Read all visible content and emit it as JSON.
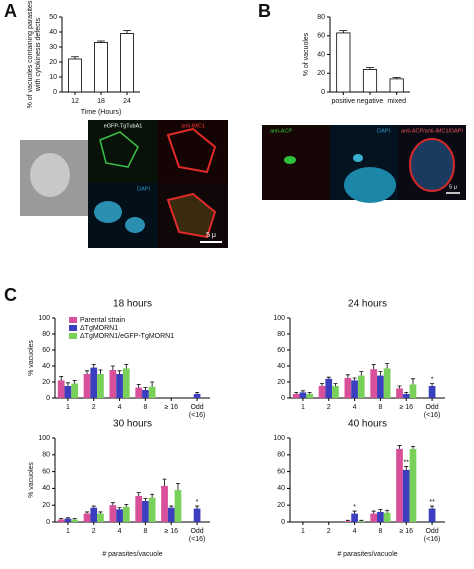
{
  "figure": {
    "panel_labels": [
      "A",
      "B",
      "C"
    ],
    "image_labels_a": [
      "eGFP-TgTubA1",
      "anti-IMC1",
      "DAPI",
      "5 μ"
    ],
    "image_labels_b": [
      "anti-ACP",
      "DAPI",
      "anti-ACP/anti-IMC1/DAPI",
      "5 μ"
    ]
  },
  "chart_data": [
    {
      "type": "bar",
      "ylabel": [
        "% of vacuoles containing parasites",
        "with cytokinesis defects"
      ],
      "xlabel": "Time (Hours)",
      "categories": [
        "12",
        "18",
        "24"
      ],
      "values": [
        22,
        33,
        39
      ],
      "errors": [
        1.5,
        1,
        2
      ],
      "color": "#ffffff",
      "ylim": [
        0,
        50
      ],
      "yticks": [
        0,
        10,
        20,
        30,
        40,
        50
      ]
    },
    {
      "type": "bar",
      "ylabel": [
        "% of vacuoles"
      ],
      "categories": [
        "positive",
        "negative",
        "mixed"
      ],
      "values": [
        63,
        24,
        14
      ],
      "errors": [
        2.5,
        2,
        1.5
      ],
      "color": "#ffffff",
      "ylim": [
        0,
        80
      ],
      "yticks": [
        0,
        20,
        40,
        60,
        80
      ]
    },
    {
      "type": "grouped-bar",
      "title": "18 hours",
      "ylabel": [
        "% vacuoles"
      ],
      "categories": [
        "1",
        "2",
        "4",
        "8",
        "≥ 16",
        [
          "Odd",
          "(<16)"
        ]
      ],
      "series": [
        {
          "name": "Parental strain",
          "color": "#d9509a",
          "values": [
            22,
            30,
            35,
            13,
            0,
            0
          ],
          "errors": [
            5,
            4,
            5,
            4,
            0,
            0
          ]
        },
        {
          "name": "ΔTgMORN1",
          "color": "#3b3fbf",
          "values": [
            15,
            38,
            30,
            10,
            0,
            5
          ],
          "errors": [
            4,
            4,
            4,
            3,
            0,
            2
          ]
        },
        {
          "name": "ΔTgMORN1/eGFP-TgMORN1",
          "color": "#7ad15a",
          "values": [
            18,
            30,
            37,
            14,
            0,
            0
          ],
          "errors": [
            4,
            5,
            5,
            6,
            0,
            0
          ]
        }
      ],
      "ylim": [
        0,
        100
      ],
      "yticks": [
        0,
        20,
        40,
        60,
        80,
        100
      ]
    },
    {
      "type": "grouped-bar",
      "title": "24 hours",
      "categories": [
        "1",
        "2",
        "4",
        "8",
        "≥ 16",
        [
          "Odd",
          "(<16)"
        ]
      ],
      "series": [
        {
          "color": "#d9509a",
          "values": [
            5,
            15,
            25,
            36,
            12,
            0
          ],
          "errors": [
            2,
            3,
            4,
            6,
            3,
            0
          ]
        },
        {
          "color": "#3b3fbf",
          "values": [
            7,
            24,
            22,
            28,
            5,
            15
          ],
          "errors": [
            2,
            2,
            3,
            5,
            2,
            3
          ]
        },
        {
          "color": "#7ad15a",
          "values": [
            5,
            15,
            28,
            37,
            17,
            0
          ],
          "errors": [
            2,
            3,
            5,
            6,
            7,
            0
          ]
        }
      ],
      "annotations": [
        {
          "text": "*",
          "series": 1,
          "category": 5
        }
      ],
      "ylim": [
        0,
        100
      ],
      "yticks": [
        0,
        20,
        40,
        60,
        80,
        100
      ]
    },
    {
      "type": "grouped-bar",
      "title": "30 hours",
      "ylabel": [
        "% vacuoles"
      ],
      "xlabel": "# parasites/vacuole",
      "categories": [
        "1",
        "2",
        "4",
        "8",
        "≥ 16",
        [
          "Odd",
          "(<16)"
        ]
      ],
      "series": [
        {
          "color": "#d9509a",
          "values": [
            3,
            10,
            20,
            31,
            43,
            0
          ],
          "errors": [
            1,
            2,
            3,
            4,
            8,
            0
          ]
        },
        {
          "color": "#3b3fbf",
          "values": [
            4,
            17,
            15,
            25,
            17,
            16
          ],
          "errors": [
            1,
            2,
            2,
            3,
            2,
            3
          ]
        },
        {
          "color": "#7ad15a",
          "values": [
            3,
            10,
            18,
            29,
            38,
            0
          ],
          "errors": [
            1,
            2,
            3,
            4,
            8,
            0
          ]
        }
      ],
      "annotations": [
        {
          "text": "*",
          "series": 1,
          "category": 5
        }
      ],
      "ylim": [
        0,
        100
      ],
      "yticks": [
        0,
        20,
        40,
        60,
        80,
        100
      ]
    },
    {
      "type": "grouped-bar",
      "title": "40 hours",
      "xlabel": "# parasites/vacuole",
      "categories": [
        "1",
        "2",
        "4",
        "8",
        "≥ 16",
        [
          "Odd",
          "(<16)"
        ]
      ],
      "series": [
        {
          "color": "#d9509a",
          "values": [
            0,
            0,
            1,
            10,
            87,
            0
          ],
          "errors": [
            0,
            0,
            1,
            3,
            4,
            0
          ]
        },
        {
          "color": "#3b3fbf",
          "values": [
            0,
            0,
            10,
            12,
            62,
            16
          ],
          "errors": [
            0,
            0,
            3,
            3,
            4,
            3
          ]
        },
        {
          "color": "#7ad15a",
          "values": [
            0,
            0,
            1,
            11,
            87,
            0
          ],
          "errors": [
            0,
            0,
            1,
            3,
            3,
            0
          ]
        }
      ],
      "annotations": [
        {
          "text": "*",
          "series": 1,
          "category": 2
        },
        {
          "text": "**",
          "series": 1,
          "category": 4
        },
        {
          "text": "**",
          "series": 1,
          "category": 5
        }
      ],
      "ylim": [
        0,
        100
      ],
      "yticks": [
        0,
        20,
        40,
        60,
        80,
        100
      ]
    }
  ]
}
